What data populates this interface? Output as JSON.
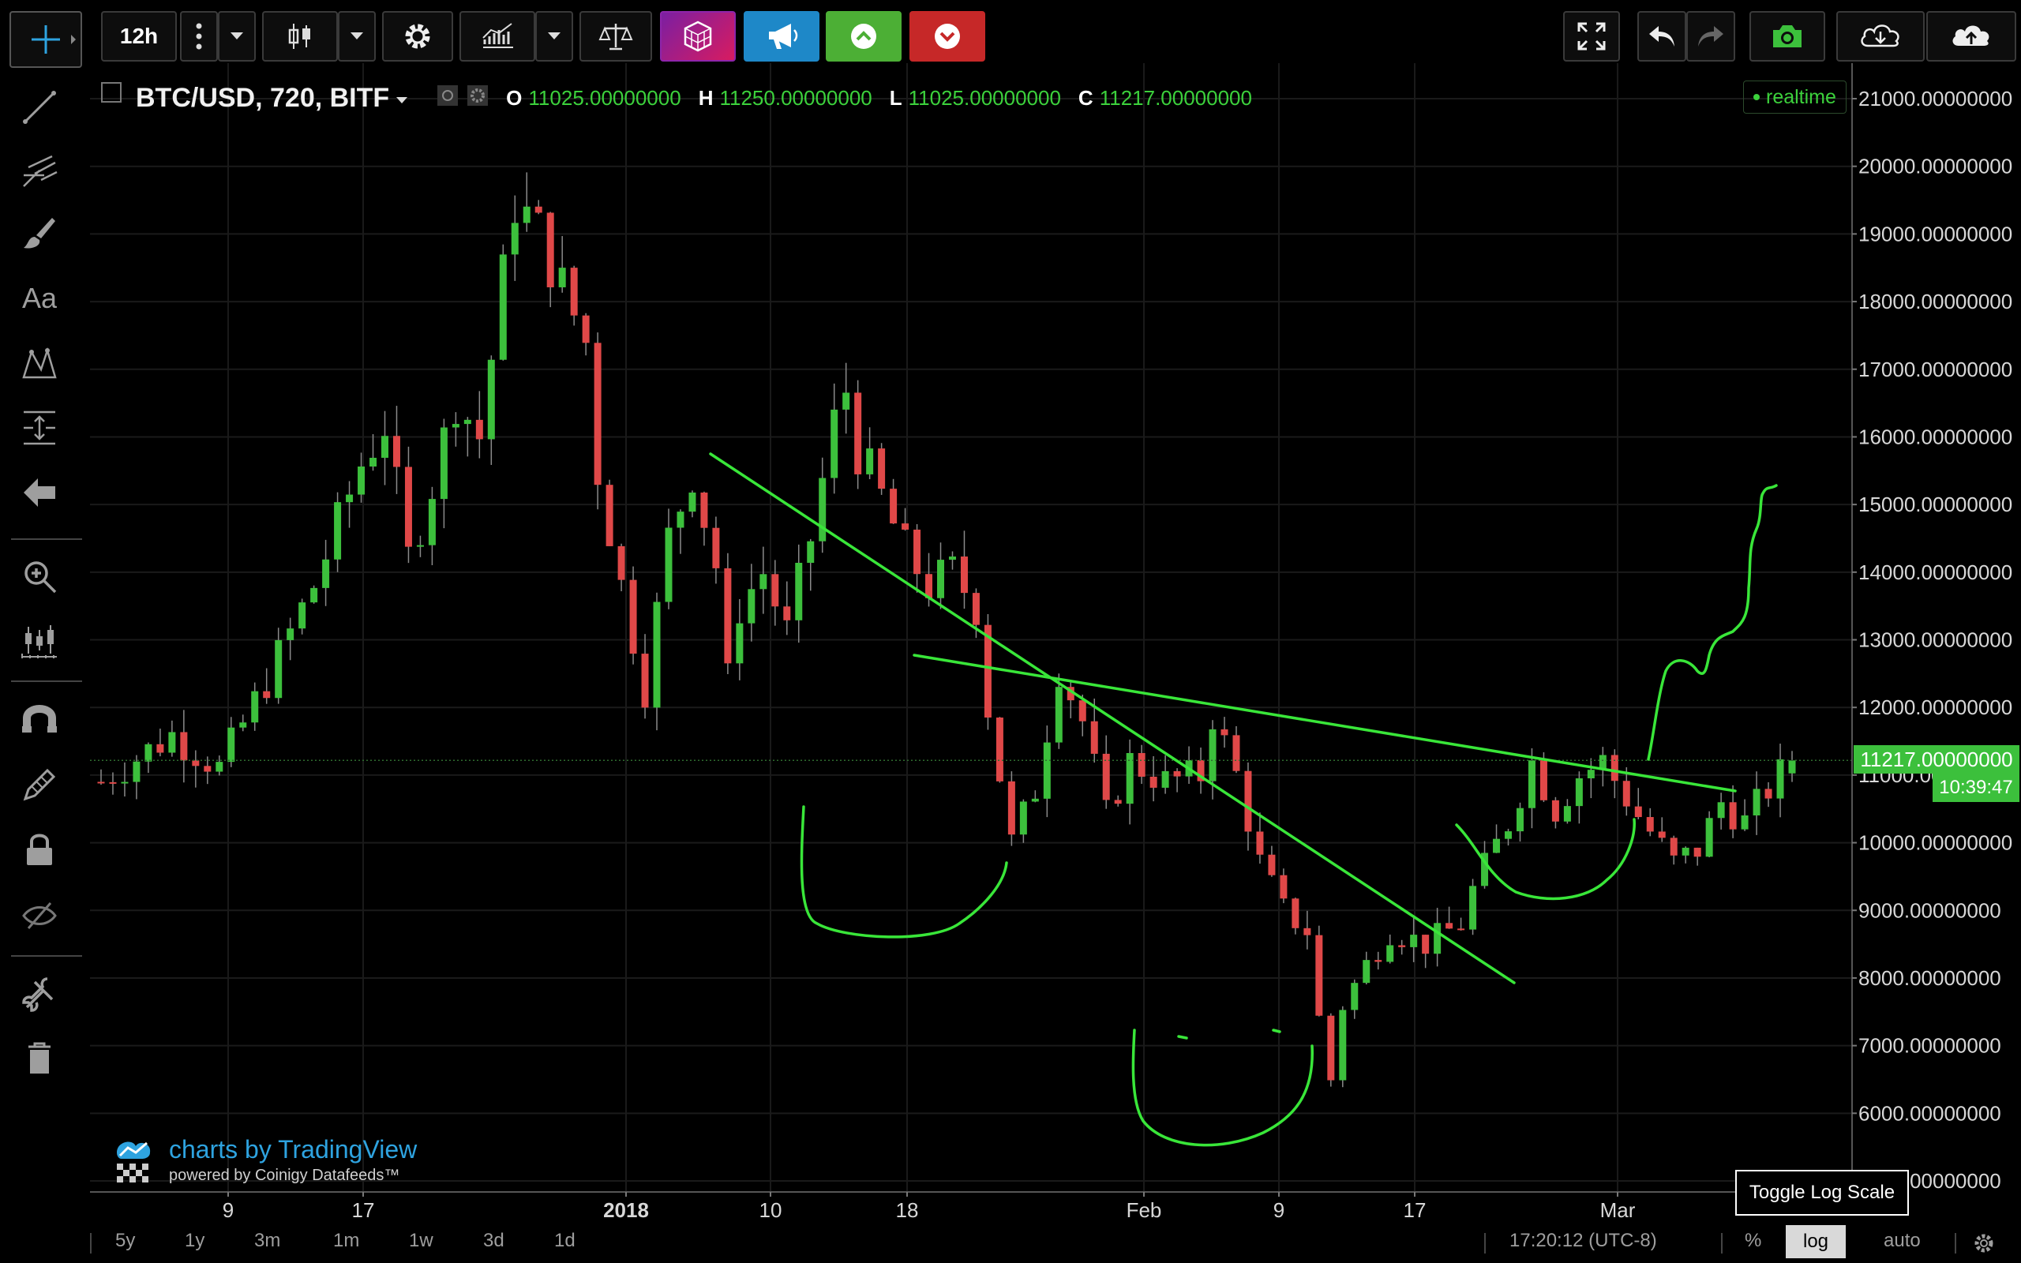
{
  "toolbar": {
    "interval": "12h",
    "icons": [
      "crosshair-icon",
      "more-vertical-icon",
      "chevron-down-icon",
      "candles-icon",
      "gear-icon",
      "indicators-icon",
      "compare-icon",
      "cube-icon",
      "megaphone-icon",
      "arrow-up-icon",
      "arrow-down-icon",
      "fullscreen-icon",
      "undo-icon",
      "redo-icon",
      "camera-icon",
      "cloud-download-icon",
      "cloud-upload-icon"
    ]
  },
  "left_toolbar": {
    "text_tool": "Aa",
    "icons": [
      "line-icon",
      "pitchfork-icon",
      "brush-icon",
      "text-icon",
      "pattern-icon",
      "measure-icon",
      "arrow-left-icon",
      "zoom-icon",
      "bars-icon",
      "magnet-icon",
      "pencil-lock-icon",
      "lock-icon",
      "eye-off-icon",
      "tools-icon",
      "trash-icon"
    ]
  },
  "legend": {
    "symbol": "BTC/USD, 720, BITF",
    "o_label": "O",
    "o_value": "11025.00000000",
    "h_label": "H",
    "h_value": "11250.00000000",
    "l_label": "L",
    "l_value": "11025.00000000",
    "c_label": "C",
    "c_value": "11217.00000000",
    "realtime": "realtime"
  },
  "price_badge": "11217.00000000",
  "countdown": "10:39:47",
  "watermark": {
    "main": "charts by TradingView",
    "sub": "powered by Coinigy Datafeeds™"
  },
  "tooltip": "Toggle Log Scale",
  "bottom": {
    "ranges": [
      "5y",
      "1y",
      "3m",
      "1m",
      "1w",
      "3d",
      "1d"
    ],
    "clock": "17:20:12 (UTC-8)",
    "percent": "%",
    "log": "log",
    "auto": "auto"
  },
  "colors": {
    "up": "#3cc03c",
    "down": "#e04848",
    "drawing": "#39e639",
    "grid": "#1a1a1a"
  },
  "chart_data": {
    "type": "candlestick",
    "xticks": [
      "9",
      "17",
      "2018",
      "10",
      "18",
      "Feb",
      "9",
      "17",
      "Mar"
    ],
    "yticks": [
      "21000.00000000",
      "20000.00000000",
      "19000.00000000",
      "18000.00000000",
      "17000.00000000",
      "16000.00000000",
      "15000.00000000",
      "14000.00000000",
      "13000.00000000",
      "12000.00000000",
      "11000.00000000",
      "10000.00000000",
      "9000.00000000",
      "8000.00000000",
      "7000.00000000",
      "6000.00000000",
      "5000.00000000"
    ],
    "ylim": [
      5000,
      21000
    ],
    "last_close": 11217,
    "close_path": [
      [
        0,
        10900
      ],
      [
        6,
        11600
      ],
      [
        10,
        11100
      ],
      [
        14,
        12400
      ],
      [
        18,
        13800
      ],
      [
        22,
        15600
      ],
      [
        24,
        16200
      ],
      [
        26,
        14200
      ],
      [
        28,
        15300
      ],
      [
        30,
        16600
      ],
      [
        32,
        16000
      ],
      [
        35,
        19500
      ],
      [
        37,
        19000
      ],
      [
        39,
        18200
      ],
      [
        41,
        17400
      ],
      [
        42,
        15500
      ],
      [
        44,
        13800
      ],
      [
        46,
        12300
      ],
      [
        48,
        14500
      ],
      [
        50,
        15500
      ],
      [
        52,
        14100
      ],
      [
        53,
        12400
      ],
      [
        54,
        13500
      ],
      [
        56,
        14000
      ],
      [
        58,
        13100
      ],
      [
        60,
        14500
      ],
      [
        62,
        16200
      ],
      [
        63,
        16700
      ],
      [
        64,
        15800
      ],
      [
        66,
        15100
      ],
      [
        68,
        14300
      ],
      [
        70,
        13800
      ],
      [
        72,
        14000
      ],
      [
        74,
        13500
      ],
      [
        75,
        12000
      ],
      [
        77,
        10000
      ],
      [
        79,
        10800
      ],
      [
        81,
        12600
      ],
      [
        83,
        11800
      ],
      [
        85,
        10400
      ],
      [
        87,
        11200
      ],
      [
        90,
        10900
      ],
      [
        93,
        11000
      ],
      [
        94,
        11900
      ],
      [
        96,
        11000
      ],
      [
        98,
        9700
      ],
      [
        100,
        9000
      ],
      [
        102,
        8700
      ],
      [
        103,
        7400
      ],
      [
        104,
        6500
      ],
      [
        105,
        7600
      ],
      [
        107,
        8200
      ],
      [
        109,
        8700
      ],
      [
        112,
        8500
      ],
      [
        115,
        8800
      ],
      [
        116,
        9300
      ],
      [
        119,
        10300
      ],
      [
        121,
        11200
      ],
      [
        123,
        10500
      ],
      [
        125,
        11000
      ],
      [
        127,
        11200
      ],
      [
        130,
        10400
      ],
      [
        133,
        9700
      ],
      [
        135,
        9900
      ],
      [
        137,
        10600
      ],
      [
        139,
        10300
      ],
      [
        141,
        10800
      ],
      [
        143,
        11217
      ]
    ]
  }
}
